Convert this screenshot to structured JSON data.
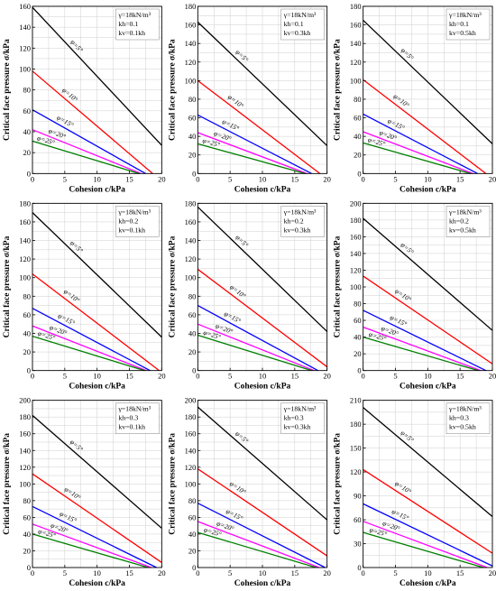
{
  "xlabel": "Cohesion c/kPa",
  "ylabel": "Critical face pressure σ/kPa",
  "phi_labels": [
    "φ=5°",
    "φ=10°",
    "φ=15°",
    "φ=20°",
    "φ=25°"
  ],
  "series_colors": [
    "#000000",
    "#ff0000",
    "#0000ff",
    "#ff00ff",
    "#008000"
  ],
  "chart_data": [
    {
      "type": "line",
      "legend": [
        "γ=18kN/m³",
        "kh=0.1",
        "kv=0.1kh"
      ],
      "xlim": [
        0,
        20
      ],
      "ylim": [
        0,
        160
      ],
      "yticks": [
        0,
        20,
        40,
        60,
        80,
        100,
        120,
        140,
        160
      ],
      "xticks": [
        0,
        5,
        10,
        15,
        20
      ],
      "series": [
        {
          "x": [
            0,
            20
          ],
          "y": [
            159,
            27
          ]
        },
        {
          "x": [
            0,
            18.6
          ],
          "y": [
            98,
            0
          ]
        },
        {
          "x": [
            0,
            17.5
          ],
          "y": [
            61,
            0
          ]
        },
        {
          "x": [
            0,
            16.8
          ],
          "y": [
            42,
            0
          ]
        },
        {
          "x": [
            0,
            16.5
          ],
          "y": [
            31,
            0
          ]
        }
      ]
    },
    {
      "type": "line",
      "legend": [
        "γ=18kN/m³",
        "kh=0.1",
        "kv=0.3kh"
      ],
      "xlim": [
        0,
        20
      ],
      "ylim": [
        0,
        180
      ],
      "yticks": [
        0,
        20,
        40,
        60,
        80,
        100,
        120,
        140,
        160,
        180
      ],
      "xticks": [
        0,
        5,
        10,
        15,
        20
      ],
      "series": [
        {
          "x": [
            0,
            20
          ],
          "y": [
            163,
            30
          ]
        },
        {
          "x": [
            0,
            18.9
          ],
          "y": [
            100,
            0
          ]
        },
        {
          "x": [
            0,
            17.6
          ],
          "y": [
            63,
            0
          ]
        },
        {
          "x": [
            0,
            16.9
          ],
          "y": [
            44,
            0
          ]
        },
        {
          "x": [
            0,
            16.6
          ],
          "y": [
            32,
            0
          ]
        }
      ]
    },
    {
      "type": "line",
      "legend": [
        "γ=18kN/m³",
        "kh=0.1",
        "kv=0.5kh"
      ],
      "xlim": [
        0,
        20
      ],
      "ylim": [
        0,
        180
      ],
      "yticks": [
        0,
        20,
        40,
        60,
        80,
        100,
        120,
        140,
        160,
        180
      ],
      "xticks": [
        0,
        5,
        10,
        15,
        20
      ],
      "series": [
        {
          "x": [
            0,
            20
          ],
          "y": [
            165,
            32
          ]
        },
        {
          "x": [
            0,
            19.0
          ],
          "y": [
            101,
            0
          ]
        },
        {
          "x": [
            0,
            17.7
          ],
          "y": [
            64,
            0
          ]
        },
        {
          "x": [
            0,
            17.0
          ],
          "y": [
            45,
            0
          ]
        },
        {
          "x": [
            0,
            16.6
          ],
          "y": [
            33,
            0
          ]
        }
      ]
    },
    {
      "type": "line",
      "legend": [
        "γ=18kN/m³",
        "kh=0.2",
        "kv=0.1kh"
      ],
      "xlim": [
        0,
        20
      ],
      "ylim": [
        0,
        180
      ],
      "yticks": [
        0,
        20,
        40,
        60,
        80,
        100,
        120,
        140,
        160,
        180
      ],
      "xticks": [
        0,
        5,
        10,
        15,
        20
      ],
      "series": [
        {
          "x": [
            0,
            20
          ],
          "y": [
            170,
            36
          ]
        },
        {
          "x": [
            0,
            19.6
          ],
          "y": [
            104,
            0
          ]
        },
        {
          "x": [
            0,
            18.2
          ],
          "y": [
            67,
            0
          ]
        },
        {
          "x": [
            0,
            17.6
          ],
          "y": [
            48,
            0
          ]
        },
        {
          "x": [
            0,
            17.3
          ],
          "y": [
            37,
            0
          ]
        }
      ]
    },
    {
      "type": "line",
      "legend": [
        "γ=18kN/m³",
        "kh=0.2",
        "kv=0.3kh"
      ],
      "xlim": [
        0,
        20
      ],
      "ylim": [
        0,
        180
      ],
      "yticks": [
        0,
        20,
        40,
        60,
        80,
        100,
        120,
        140,
        160,
        180
      ],
      "xticks": [
        0,
        5,
        10,
        15,
        20
      ],
      "series": [
        {
          "x": [
            0,
            20
          ],
          "y": [
            176,
            42
          ]
        },
        {
          "x": [
            0,
            20
          ],
          "y": [
            109,
            4
          ]
        },
        {
          "x": [
            0,
            18.6
          ],
          "y": [
            70,
            0
          ]
        },
        {
          "x": [
            0,
            18.0
          ],
          "y": [
            50,
            0
          ]
        },
        {
          "x": [
            0,
            17.6
          ],
          "y": [
            38,
            0
          ]
        }
      ]
    },
    {
      "type": "line",
      "legend": [
        "γ=18kN/m³",
        "kh=0.2",
        "kv=0.5kh"
      ],
      "xlim": [
        0,
        20
      ],
      "ylim": [
        0,
        200
      ],
      "yticks": [
        0,
        20,
        40,
        60,
        80,
        100,
        120,
        140,
        160,
        180,
        200
      ],
      "xticks": [
        0,
        5,
        10,
        15,
        20
      ],
      "series": [
        {
          "x": [
            0,
            20
          ],
          "y": [
            182,
            48
          ]
        },
        {
          "x": [
            0,
            20
          ],
          "y": [
            113,
            8
          ]
        },
        {
          "x": [
            0,
            19.0
          ],
          "y": [
            72,
            0
          ]
        },
        {
          "x": [
            0,
            18.2
          ],
          "y": [
            52,
            0
          ]
        },
        {
          "x": [
            0,
            17.8
          ],
          "y": [
            40,
            0
          ]
        }
      ]
    },
    {
      "type": "line",
      "legend": [
        "γ=18kN/m³",
        "kh=0.3",
        "kv=0.1kh"
      ],
      "xlim": [
        0,
        20
      ],
      "ylim": [
        0,
        200
      ],
      "yticks": [
        0,
        20,
        40,
        60,
        80,
        100,
        120,
        140,
        160,
        180,
        200
      ],
      "xticks": [
        0,
        5,
        10,
        15,
        20
      ],
      "series": [
        {
          "x": [
            0,
            20
          ],
          "y": [
            182,
            47
          ]
        },
        {
          "x": [
            0,
            20
          ],
          "y": [
            112,
            6
          ]
        },
        {
          "x": [
            0,
            19.2
          ],
          "y": [
            73,
            0
          ]
        },
        {
          "x": [
            0,
            18.4
          ],
          "y": [
            52,
            0
          ]
        },
        {
          "x": [
            0,
            17.9
          ],
          "y": [
            40,
            0
          ]
        }
      ]
    },
    {
      "type": "line",
      "legend": [
        "γ=18kN/m³",
        "kh=0.3",
        "kv=0.3kh"
      ],
      "xlim": [
        0,
        20
      ],
      "ylim": [
        0,
        200
      ],
      "yticks": [
        0,
        20,
        40,
        60,
        80,
        100,
        120,
        140,
        160,
        180,
        200
      ],
      "xticks": [
        0,
        5,
        10,
        15,
        20
      ],
      "series": [
        {
          "x": [
            0,
            20
          ],
          "y": [
            192,
            57
          ]
        },
        {
          "x": [
            0,
            20
          ],
          "y": [
            118,
            14
          ]
        },
        {
          "x": [
            0,
            19.7
          ],
          "y": [
            77,
            0
          ]
        },
        {
          "x": [
            0,
            18.8
          ],
          "y": [
            55,
            0
          ]
        },
        {
          "x": [
            0,
            18.3
          ],
          "y": [
            42,
            0
          ]
        }
      ]
    },
    {
      "type": "line",
      "legend": [
        "γ=18kN/m³",
        "kh=0.3",
        "kv=0.5kh"
      ],
      "xlim": [
        0,
        20
      ],
      "ylim": [
        0,
        210
      ],
      "yticks": [
        0,
        30,
        60,
        90,
        120,
        150,
        180,
        210
      ],
      "xticks": [
        0,
        5,
        10,
        15,
        20
      ],
      "series": [
        {
          "x": [
            0,
            20
          ],
          "y": [
            201,
            64
          ]
        },
        {
          "x": [
            0,
            20
          ],
          "y": [
            123,
            18
          ]
        },
        {
          "x": [
            0,
            20
          ],
          "y": [
            80,
            2
          ]
        },
        {
          "x": [
            0,
            19.2
          ],
          "y": [
            58,
            0
          ]
        },
        {
          "x": [
            0,
            18.6
          ],
          "y": [
            44,
            0
          ]
        }
      ]
    }
  ]
}
